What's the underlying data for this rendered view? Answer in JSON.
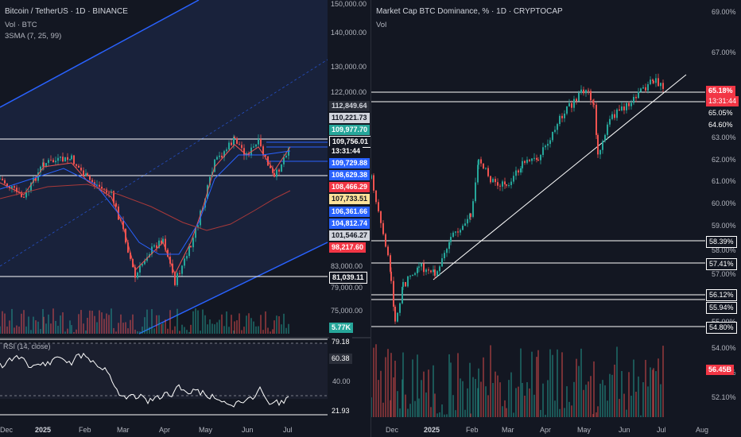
{
  "left": {
    "title": "Bitcoin / TetherUS · 1D · BINANCE",
    "vol_label": "Vol · BTC",
    "indicator_label": "3SMA (7, 25, 99)",
    "rsi_label": "RSI (14, close)",
    "price_axis": [
      "150,000.00",
      "140,000.00",
      "130,000.00",
      "122,000.00",
      "83,000.00",
      "79,000.00",
      "75,000.00"
    ],
    "price_tags": [
      {
        "text": "112,849.64",
        "bg": "#2a2e39",
        "fg": "#d1d4dc"
      },
      {
        "text": "110,221.73",
        "bg": "#d1d4dc",
        "fg": "#131722"
      },
      {
        "text": "109,977.70",
        "bg": "#26a69a",
        "fg": "#ffffff"
      },
      {
        "text": "109,756.01",
        "bg": "#131722",
        "fg": "#ffffff"
      },
      {
        "text": "13:31:44",
        "bg": "#131722",
        "fg": "#ffffff"
      },
      {
        "text": "109,729.88",
        "bg": "#2962ff",
        "fg": "#ffffff"
      },
      {
        "text": "108,629.38",
        "bg": "#2962ff",
        "fg": "#ffffff"
      },
      {
        "text": "108,466.29",
        "bg": "#f23645",
        "fg": "#ffffff"
      },
      {
        "text": "107,733.51",
        "bg": "#ffe29a",
        "fg": "#131722"
      },
      {
        "text": "106,361.66",
        "bg": "#2962ff",
        "fg": "#ffffff"
      },
      {
        "text": "104,812.74",
        "bg": "#2962ff",
        "fg": "#ffffff"
      },
      {
        "text": "101,546.27",
        "bg": "#d1d4dc",
        "fg": "#131722"
      },
      {
        "text": "98,217.60",
        "bg": "#f23645",
        "fg": "#ffffff"
      },
      {
        "text": "81,039.11",
        "bg": "#131722",
        "fg": "#ffffff"
      }
    ],
    "vol_tag": "5.77K",
    "rsi_axis": {
      "a": "79.18",
      "b": "60.38",
      "c": "40.00",
      "d": "21.93"
    },
    "time_axis": [
      "Dec",
      "2025",
      "Feb",
      "Mar",
      "Apr",
      "May",
      "Jun",
      "Jul"
    ]
  },
  "right": {
    "title": "Market Cap BTC Dominance, % · 1D · CRYPTOCAP",
    "vol_label": "Vol",
    "price_axis": [
      "69.00%",
      "67.00%",
      "63.00%",
      "62.00%",
      "61.00%",
      "60.00%",
      "59.00%",
      "58.00%",
      "57.00%",
      "55.00%",
      "54.00%",
      "53.00%",
      "52.10%"
    ],
    "price_tags": [
      {
        "text": "65.18%",
        "bg": "#f23645",
        "fg": "#ffffff"
      },
      {
        "text": "13:31:44",
        "bg": "#f23645",
        "fg": "#ffffff"
      },
      {
        "text": "65.05%",
        "bg": "#131722",
        "fg": "#ffffff"
      },
      {
        "text": "64.60%",
        "bg": "#131722",
        "fg": "#ffffff"
      },
      {
        "text": "58.39%",
        "bg": "#131722",
        "fg": "#ffffff"
      },
      {
        "text": "57.41%",
        "bg": "#131722",
        "fg": "#ffffff"
      },
      {
        "text": "56.12%",
        "bg": "#131722",
        "fg": "#ffffff"
      },
      {
        "text": "55.94%",
        "bg": "#131722",
        "fg": "#ffffff"
      },
      {
        "text": "54.80%",
        "bg": "#131722",
        "fg": "#ffffff"
      }
    ],
    "vol_tag": "56.45B",
    "time_axis": [
      "Dec",
      "2025",
      "Feb",
      "Mar",
      "Apr",
      "May",
      "Jun",
      "Jul",
      "Aug"
    ]
  },
  "colors": {
    "up": "#26a69a",
    "down": "#ef5350",
    "channel": "#2962ff",
    "bg": "#131722"
  }
}
